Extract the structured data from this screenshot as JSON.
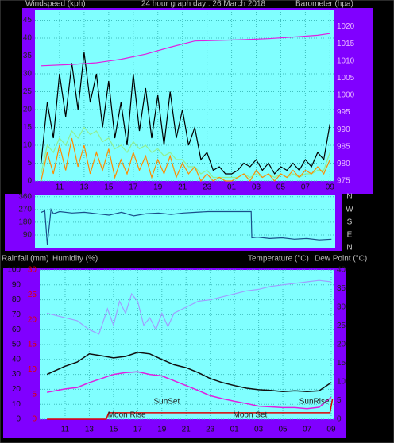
{
  "chart_data": [
    {
      "type": "line",
      "title": "24 hour graph day : 26 March 2018",
      "y_label": "Windspeed (kph)",
      "y2_label": "Barometer (hpa)",
      "xlim": [
        9,
        33.3
      ],
      "xticks": [
        11,
        13,
        15,
        17,
        19,
        21,
        23,
        {
          "value": 25,
          "label": "01"
        },
        {
          "value": 27,
          "label": "03"
        },
        {
          "value": 29,
          "label": "05"
        },
        {
          "value": 31,
          "label": "07"
        },
        {
          "value": 33,
          "label": "09"
        }
      ],
      "ylim": [
        0,
        48
      ],
      "yticks": [
        0,
        5,
        10,
        15,
        20,
        25,
        30,
        35,
        40,
        45
      ],
      "y2lim": [
        975,
        1025
      ],
      "y2ticks": [
        975,
        980,
        985,
        990,
        995,
        1000,
        1005,
        1010,
        1015,
        1020
      ],
      "grid": true,
      "x": [
        9.5,
        10,
        10.5,
        11,
        11.5,
        12,
        12.5,
        13,
        13.5,
        14,
        14.5,
        15,
        15.5,
        16,
        16.5,
        17,
        17.5,
        18,
        18.5,
        19,
        19.5,
        20,
        20.5,
        21,
        21.5,
        22,
        22.5,
        23,
        23.5,
        24,
        24.5,
        25,
        25.5,
        26,
        26.5,
        27,
        27.5,
        28,
        28.5,
        29,
        29.5,
        30,
        30.5,
        31,
        31.5,
        32,
        32.5,
        33
      ],
      "series": [
        {
          "color": "#90ee90",
          "values": [
            2,
            10,
            8,
            12,
            10,
            14,
            12,
            15,
            13,
            14,
            11,
            12,
            9,
            10,
            8,
            11,
            9,
            10,
            8,
            9,
            7,
            8,
            6,
            6,
            4,
            4,
            2,
            3,
            1,
            1,
            1,
            1,
            1,
            2,
            1,
            2,
            1,
            2,
            1,
            2,
            1,
            2,
            1,
            2,
            2,
            3,
            3,
            8
          ]
        },
        {
          "color": "#000000",
          "values": [
            5,
            22,
            12,
            30,
            18,
            33,
            20,
            36,
            22,
            30,
            15,
            28,
            12,
            22,
            10,
            30,
            14,
            26,
            12,
            24,
            10,
            25,
            12,
            20,
            10,
            15,
            6,
            8,
            3,
            4,
            2,
            2,
            3,
            5,
            4,
            6,
            3,
            5,
            2,
            4,
            3,
            5,
            3,
            6,
            4,
            8,
            6,
            16
          ]
        },
        {
          "color": "#ff8c00",
          "values": [
            0,
            8,
            2,
            10,
            3,
            12,
            4,
            10,
            2,
            8,
            3,
            9,
            1,
            6,
            2,
            8,
            3,
            7,
            1,
            6,
            2,
            7,
            1,
            5,
            2,
            4,
            0,
            2,
            0,
            1,
            0,
            0,
            1,
            2,
            0,
            3,
            1,
            2,
            0,
            2,
            1,
            3,
            1,
            3,
            2,
            4,
            2,
            6
          ]
        },
        {
          "color": "#e020e0",
          "axis": "y2",
          "x": [
            9.5,
            12,
            14,
            16,
            18,
            20,
            22,
            24,
            26,
            28,
            30,
            32,
            33
          ],
          "values": [
            1008.6,
            1009,
            1009.5,
            1010.5,
            1012,
            1014,
            1015.8,
            1016,
            1016.2,
            1016.5,
            1017,
            1017.5,
            1018
          ]
        }
      ]
    },
    {
      "type": "line",
      "xlim": [
        9,
        33.3
      ],
      "ylim": [
        0,
        370
      ],
      "yticks": [
        90,
        180,
        270,
        360
      ],
      "y2lim": [
        0,
        370
      ],
      "y2ticks": [
        {
          "value": 360,
          "label": "N"
        },
        {
          "value": 270,
          "label": "W"
        },
        {
          "value": 180,
          "label": "S"
        },
        {
          "value": 90,
          "label": "E"
        },
        {
          "value": 0,
          "label": "N"
        }
      ],
      "grid": true,
      "x": [
        9.5,
        9.8,
        10,
        10.3,
        10.5,
        11,
        12,
        13,
        14,
        15,
        16,
        17,
        18,
        19,
        20,
        21,
        22,
        23,
        23.5,
        26.5,
        26.55,
        27,
        28,
        29,
        30,
        31,
        32,
        33
      ],
      "series": [
        {
          "color": "#1a4f8a",
          "values": [
            250,
            260,
            20,
            270,
            240,
            255,
            245,
            250,
            240,
            230,
            250,
            225,
            240,
            245,
            235,
            245,
            250,
            255,
            255,
            255,
            70,
            75,
            65,
            70,
            60,
            65,
            55,
            60
          ]
        }
      ]
    },
    {
      "type": "line",
      "y3_label": "Rainfall (mm)",
      "y_label": "Humidity (%)",
      "y2_labels": [
        "Temperature (°C)",
        "Dew Point (°C)"
      ],
      "xlim": [
        8.9,
        33.2
      ],
      "xticks": [
        11,
        13,
        15,
        17,
        19,
        21,
        23,
        {
          "value": 25,
          "label": "01"
        },
        {
          "value": 27,
          "label": "03"
        },
        {
          "value": 29,
          "label": "05"
        },
        {
          "value": 31,
          "label": "07"
        },
        {
          "value": 33,
          "label": "09"
        }
      ],
      "ylim": [
        0,
        100
      ],
      "yticks": [
        0,
        10,
        20,
        30,
        40,
        50,
        60,
        70,
        80,
        90,
        100
      ],
      "y2lim": [
        0,
        40
      ],
      "y2ticks": [
        0,
        5,
        10,
        15,
        20,
        25,
        30,
        35,
        40
      ],
      "y3lim": [
        0,
        30
      ],
      "y3ticks": [
        0,
        5,
        10,
        15,
        20,
        25,
        30
      ],
      "y3_color": "#e00000",
      "grid": true,
      "x": [
        9.5,
        11,
        12,
        13,
        14,
        15,
        16,
        17,
        18,
        19,
        20,
        21,
        22,
        23,
        24,
        25,
        26,
        27,
        28,
        29,
        30,
        31,
        32,
        33
      ],
      "series": [
        {
          "color": "#9f9fff",
          "x": [
            9.5,
            11,
            12,
            13,
            13.8,
            14.5,
            15,
            15.5,
            16,
            16.5,
            17,
            17.5,
            18,
            18.5,
            19,
            19.5,
            20,
            21,
            22,
            23,
            24,
            25,
            26,
            27,
            28,
            29,
            30,
            31,
            32,
            33
          ],
          "values": [
            71,
            68,
            66,
            60,
            57,
            74,
            63,
            79,
            71,
            84,
            79,
            63,
            68,
            60,
            71,
            62,
            71,
            75,
            79,
            80,
            82,
            84,
            86,
            87,
            89,
            90,
            91,
            92,
            93,
            92
          ]
        },
        {
          "color": "#101010",
          "axis": "y2",
          "values": [
            12,
            14.2,
            15.3,
            17.5,
            17,
            16.4,
            16.8,
            17.9,
            17.5,
            16,
            14.6,
            13.8,
            12.5,
            10.9,
            9.8,
            9,
            8.3,
            7.9,
            7.7,
            7.4,
            7.6,
            7.4,
            7.6,
            9.8
          ]
        },
        {
          "color": "#e020e0",
          "axis": "y2",
          "values": [
            7.2,
            8.1,
            8.5,
            9.8,
            10.9,
            12,
            12.5,
            12.7,
            12,
            11.6,
            10.3,
            9,
            7.7,
            6.3,
            5.5,
            4.8,
            4.2,
            3.5,
            3.3,
            3.1,
            3.1,
            2.8,
            3.2,
            5.9
          ]
        },
        {
          "color": "#e00000",
          "axis": "y3",
          "x": [
            9.5,
            14.4,
            14.6,
            32.9,
            33.1
          ],
          "values": [
            0,
            0,
            1.3,
            1.3,
            4
          ]
        }
      ],
      "annotations": [
        {
          "text": "Moon Rise",
          "x": 16.1
        },
        {
          "text": "SunSet",
          "x": 19.4
        },
        {
          "text": "Moon Set",
          "x": 26.3
        },
        {
          "text": "SunRise",
          "x": 31.6
        }
      ]
    }
  ]
}
